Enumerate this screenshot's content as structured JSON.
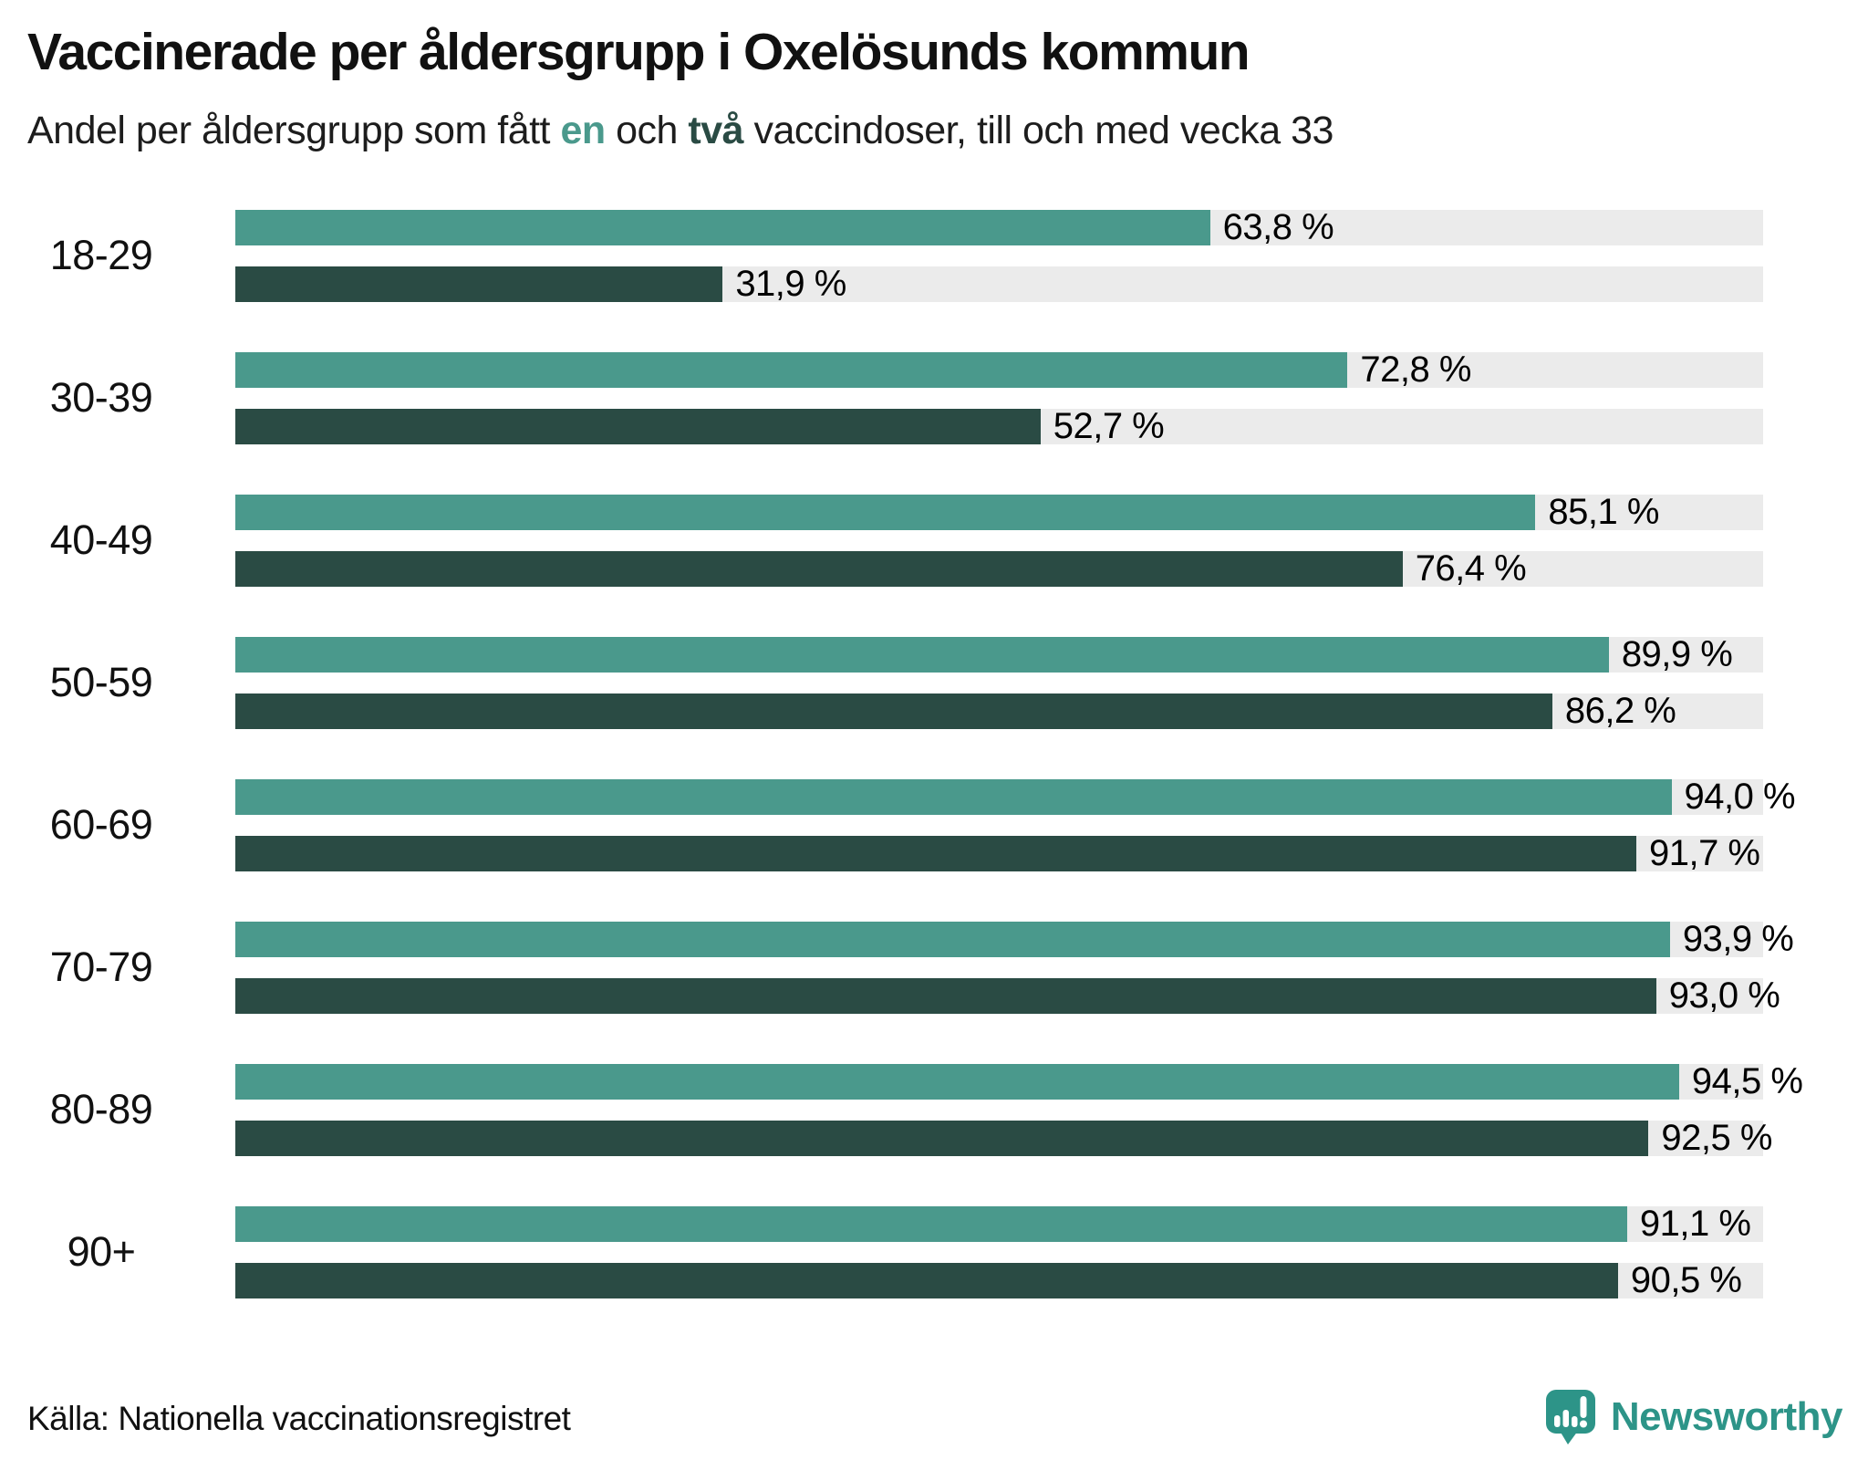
{
  "title": "Vaccinerade per åldersgrupp i Oxelösunds kommun",
  "subtitle": {
    "prefix": "Andel per åldersgrupp som fått ",
    "one_word": "en",
    "middle": " och ",
    "two_word": "två",
    "suffix": " vaccindoser, till och med vecka 33"
  },
  "colors": {
    "dose1": "#4a998c",
    "dose2": "#2a4b44",
    "track": "#ebebeb",
    "text": "#111111",
    "brand": "#2d9488"
  },
  "chart_data": {
    "type": "bar",
    "orientation": "horizontal",
    "title": "Vaccinerade per åldersgrupp i Oxelösunds kommun",
    "subtitle": "Andel per åldersgrupp som fått en och två vaccindoser, till och med vecka 33",
    "xlim": [
      0,
      100
    ],
    "unit": "%",
    "grid": false,
    "legend_position": "in-subtitle",
    "categories": [
      "18-29",
      "30-39",
      "40-49",
      "50-59",
      "60-69",
      "70-79",
      "80-89",
      "90+"
    ],
    "series": [
      {
        "name": "en dos",
        "values": [
          63.8,
          72.8,
          85.1,
          89.9,
          94.0,
          93.9,
          94.5,
          91.1
        ]
      },
      {
        "name": "två doser",
        "values": [
          31.9,
          52.7,
          76.4,
          86.2,
          91.7,
          93.0,
          92.5,
          90.5
        ]
      }
    ],
    "rows": [
      {
        "group": "18-29",
        "dose1_value": 63.8,
        "dose1_label": "63,8 %",
        "dose2_value": 31.9,
        "dose2_label": "31,9 %"
      },
      {
        "group": "30-39",
        "dose1_value": 72.8,
        "dose1_label": "72,8 %",
        "dose2_value": 52.7,
        "dose2_label": "52,7 %"
      },
      {
        "group": "40-49",
        "dose1_value": 85.1,
        "dose1_label": "85,1 %",
        "dose2_value": 76.4,
        "dose2_label": "76,4 %"
      },
      {
        "group": "50-59",
        "dose1_value": 89.9,
        "dose1_label": "89,9 %",
        "dose2_value": 86.2,
        "dose2_label": "86,2 %"
      },
      {
        "group": "60-69",
        "dose1_value": 94.0,
        "dose1_label": "94,0 %",
        "dose2_value": 91.7,
        "dose2_label": "91,7 %"
      },
      {
        "group": "70-79",
        "dose1_value": 93.9,
        "dose1_label": "93,9 %",
        "dose2_value": 93.0,
        "dose2_label": "93,0 %"
      },
      {
        "group": "80-89",
        "dose1_value": 94.5,
        "dose1_label": "94,5 %",
        "dose2_value": 92.5,
        "dose2_label": "92,5 %"
      },
      {
        "group": "90+",
        "dose1_value": 91.1,
        "dose1_label": "91,1 %",
        "dose2_value": 90.5,
        "dose2_label": "90,5 %"
      }
    ]
  },
  "footer": {
    "source": "Källa: Nationella vaccinationsregistret",
    "brand": "Newsworthy"
  }
}
